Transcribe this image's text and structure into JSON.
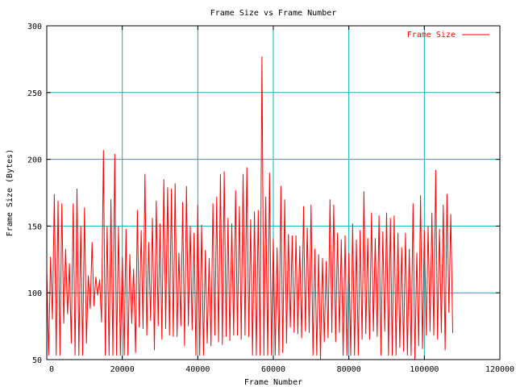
{
  "chart_data": {
    "type": "line",
    "title": "Frame Size vs Frame Number",
    "xlabel": "Frame Number",
    "ylabel": "Frame Size (Bytes)",
    "xlim": [
      0,
      120000
    ],
    "ylim": [
      50,
      300
    ],
    "xticks": [
      0,
      20000,
      40000,
      60000,
      80000,
      100000,
      120000
    ],
    "yticks": [
      50,
      100,
      150,
      200,
      250,
      300
    ],
    "grid": true,
    "legend_position": "top-right",
    "colors": {
      "series": "#ff0000",
      "grid": "#00b4b4",
      "axis": "#000000"
    },
    "series": [
      {
        "name": "Frame Size",
        "points": [
          [
            0,
            117
          ],
          [
            500,
            53
          ],
          [
            1000,
            127
          ],
          [
            1500,
            80
          ],
          [
            2000,
            174
          ],
          [
            2500,
            53
          ],
          [
            3000,
            169
          ],
          [
            3500,
            53
          ],
          [
            4000,
            167
          ],
          [
            4500,
            77
          ],
          [
            5000,
            133
          ],
          [
            5500,
            84
          ],
          [
            6000,
            122
          ],
          [
            6500,
            62
          ],
          [
            7000,
            167
          ],
          [
            7500,
            53
          ],
          [
            8000,
            178
          ],
          [
            8500,
            53
          ],
          [
            9000,
            150
          ],
          [
            9500,
            53
          ],
          [
            10000,
            164
          ],
          [
            10500,
            62
          ],
          [
            11000,
            113
          ],
          [
            11500,
            88
          ],
          [
            12000,
            138
          ],
          [
            12500,
            90
          ],
          [
            13000,
            112
          ],
          [
            13500,
            98
          ],
          [
            14000,
            110
          ],
          [
            14500,
            78
          ],
          [
            15000,
            207
          ],
          [
            15500,
            53
          ],
          [
            16000,
            150
          ],
          [
            16500,
            53
          ],
          [
            17000,
            170
          ],
          [
            17500,
            53
          ],
          [
            18000,
            204
          ],
          [
            18500,
            53
          ],
          [
            19000,
            150
          ],
          [
            19500,
            53
          ],
          [
            20000,
            127
          ],
          [
            20500,
            53
          ],
          [
            21000,
            148
          ],
          [
            21500,
            53
          ],
          [
            22000,
            129
          ],
          [
            22500,
            77
          ],
          [
            23000,
            118
          ],
          [
            23500,
            55
          ],
          [
            24000,
            162
          ],
          [
            24500,
            74
          ],
          [
            25000,
            147
          ],
          [
            25500,
            73
          ],
          [
            26000,
            189
          ],
          [
            26500,
            68
          ],
          [
            27000,
            138
          ],
          [
            27500,
            79
          ],
          [
            28000,
            156
          ],
          [
            28500,
            57
          ],
          [
            29000,
            169
          ],
          [
            29500,
            75
          ],
          [
            30000,
            152
          ],
          [
            30500,
            65
          ],
          [
            31000,
            185
          ],
          [
            31500,
            73
          ],
          [
            32000,
            179
          ],
          [
            32500,
            68
          ],
          [
            33000,
            178
          ],
          [
            33500,
            67
          ],
          [
            34000,
            182
          ],
          [
            34500,
            67
          ],
          [
            35000,
            130
          ],
          [
            35500,
            75
          ],
          [
            36000,
            168
          ],
          [
            36500,
            60
          ],
          [
            37000,
            180
          ],
          [
            37500,
            75
          ],
          [
            38000,
            150
          ],
          [
            38500,
            72
          ],
          [
            39000,
            145
          ],
          [
            39500,
            53
          ],
          [
            40000,
            166
          ],
          [
            40500,
            53
          ],
          [
            41000,
            151
          ],
          [
            41500,
            53
          ],
          [
            42000,
            132
          ],
          [
            42500,
            62
          ],
          [
            43000,
            126
          ],
          [
            43500,
            60
          ],
          [
            44000,
            167
          ],
          [
            44500,
            68
          ],
          [
            45000,
            172
          ],
          [
            45500,
            63
          ],
          [
            46000,
            189
          ],
          [
            46500,
            61
          ],
          [
            47000,
            191
          ],
          [
            47500,
            67
          ],
          [
            48000,
            156
          ],
          [
            48500,
            64
          ],
          [
            49000,
            152
          ],
          [
            49500,
            68
          ],
          [
            50000,
            177
          ],
          [
            50500,
            68
          ],
          [
            51000,
            165
          ],
          [
            51500,
            65
          ],
          [
            52000,
            189
          ],
          [
            52500,
            68
          ],
          [
            53000,
            194
          ],
          [
            53500,
            67
          ],
          [
            54000,
            155
          ],
          [
            54500,
            53
          ],
          [
            55000,
            161
          ],
          [
            55500,
            53
          ],
          [
            56000,
            162
          ],
          [
            56500,
            53
          ],
          [
            57000,
            277
          ],
          [
            57500,
            53
          ],
          [
            58000,
            172
          ],
          [
            58500,
            53
          ],
          [
            59000,
            190
          ],
          [
            59500,
            53
          ],
          [
            60000,
            141
          ],
          [
            60500,
            53
          ],
          [
            61000,
            134
          ],
          [
            61500,
            53
          ],
          [
            62000,
            180
          ],
          [
            62500,
            55
          ],
          [
            63000,
            170
          ],
          [
            63500,
            62
          ],
          [
            64000,
            144
          ],
          [
            64500,
            74
          ],
          [
            65000,
            143
          ],
          [
            65500,
            70
          ],
          [
            66000,
            143
          ],
          [
            66500,
            69
          ],
          [
            67000,
            135
          ],
          [
            67500,
            66
          ],
          [
            68000,
            165
          ],
          [
            68500,
            71
          ],
          [
            69000,
            149
          ],
          [
            69500,
            70
          ],
          [
            70000,
            166
          ],
          [
            70500,
            53
          ],
          [
            71000,
            133
          ],
          [
            71500,
            53
          ],
          [
            72000,
            129
          ],
          [
            72500,
            50
          ],
          [
            73000,
            126
          ],
          [
            73500,
            63
          ],
          [
            74000,
            124
          ],
          [
            74500,
            66
          ],
          [
            75000,
            170
          ],
          [
            75500,
            70
          ],
          [
            76000,
            166
          ],
          [
            76500,
            63
          ],
          [
            77000,
            145
          ],
          [
            77500,
            70
          ],
          [
            78000,
            140
          ],
          [
            78500,
            53
          ],
          [
            79000,
            143
          ],
          [
            79500,
            53
          ],
          [
            80000,
            130
          ],
          [
            80500,
            53
          ],
          [
            81000,
            152
          ],
          [
            81500,
            53
          ],
          [
            82000,
            140
          ],
          [
            82500,
            53
          ],
          [
            83000,
            147
          ],
          [
            83500,
            65
          ],
          [
            84000,
            176
          ],
          [
            84500,
            69
          ],
          [
            85000,
            141
          ],
          [
            85500,
            65
          ],
          [
            86000,
            160
          ],
          [
            86500,
            71
          ],
          [
            87000,
            141
          ],
          [
            87500,
            67
          ],
          [
            88000,
            158
          ],
          [
            88500,
            53
          ],
          [
            89000,
            146
          ],
          [
            89500,
            71
          ],
          [
            90000,
            160
          ],
          [
            90500,
            53
          ],
          [
            91000,
            156
          ],
          [
            91500,
            53
          ],
          [
            92000,
            158
          ],
          [
            92500,
            53
          ],
          [
            93000,
            145
          ],
          [
            93500,
            59
          ],
          [
            94000,
            134
          ],
          [
            94500,
            56
          ],
          [
            95000,
            145
          ],
          [
            95500,
            53
          ],
          [
            96000,
            133
          ],
          [
            96500,
            53
          ],
          [
            97000,
            167
          ],
          [
            97500,
            50
          ],
          [
            98000,
            130
          ],
          [
            98500,
            60
          ],
          [
            99000,
            173
          ],
          [
            99500,
            58
          ],
          [
            100000,
            147
          ],
          [
            100500,
            68
          ],
          [
            101000,
            150
          ],
          [
            101500,
            71
          ],
          [
            102000,
            160
          ],
          [
            102500,
            68
          ],
          [
            103000,
            192
          ],
          [
            103500,
            65
          ],
          [
            104000,
            148
          ],
          [
            104500,
            70
          ],
          [
            105000,
            166
          ],
          [
            105500,
            57
          ],
          [
            106000,
            174
          ],
          [
            106500,
            85
          ],
          [
            107000,
            159
          ],
          [
            107500,
            70
          ]
        ]
      }
    ]
  }
}
